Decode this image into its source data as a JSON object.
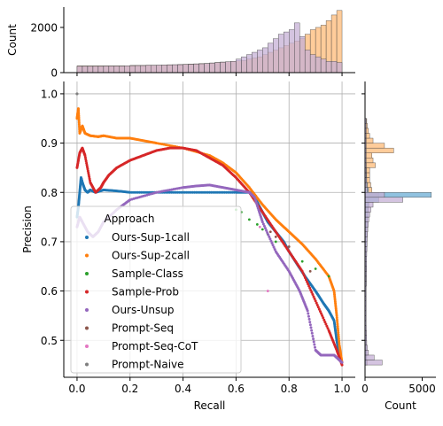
{
  "chart_data": {
    "type": "scatter",
    "main": {
      "xlabel": "Recall",
      "ylabel": "Precision",
      "xlim": [
        -0.05,
        1.05
      ],
      "ylim": [
        0.425,
        1.025
      ],
      "xticks": [
        "0.0",
        "0.2",
        "0.4",
        "0.6",
        "0.8",
        "1.0"
      ],
      "yticks": [
        "0.5",
        "0.6",
        "0.7",
        "0.8",
        "0.9",
        "1.0"
      ],
      "xtick_values": [
        0.0,
        0.2,
        0.4,
        0.6,
        0.8,
        1.0
      ],
      "ytick_values": [
        0.5,
        0.6,
        0.7,
        0.8,
        0.9,
        1.0
      ],
      "grid": true,
      "legend_title": "Approach",
      "legend_position": "lower-left",
      "series": [
        {
          "name": "Ours-Sup-1call",
          "color": "#1f77b4",
          "x": [
            0.0,
            0.005,
            0.01,
            0.015,
            0.02,
            0.03,
            0.04,
            0.05,
            0.07,
            0.1,
            0.15,
            0.2,
            0.3,
            0.4,
            0.5,
            0.6,
            0.66,
            0.68,
            0.7,
            0.72,
            0.75,
            0.78,
            0.8,
            0.83,
            0.86,
            0.9,
            0.93,
            0.95,
            0.97,
            0.98,
            0.99,
            1.0
          ],
          "y": [
            0.75,
            0.77,
            0.8,
            0.83,
            0.82,
            0.805,
            0.8,
            0.805,
            0.8,
            0.805,
            0.803,
            0.8,
            0.8,
            0.8,
            0.8,
            0.8,
            0.8,
            0.78,
            0.76,
            0.74,
            0.72,
            0.7,
            0.68,
            0.655,
            0.63,
            0.6,
            0.575,
            0.56,
            0.54,
            0.5,
            0.47,
            0.455
          ]
        },
        {
          "name": "Ours-Sup-2call",
          "color": "#ff7f0e",
          "x": [
            0.0,
            0.005,
            0.01,
            0.02,
            0.03,
            0.05,
            0.08,
            0.1,
            0.15,
            0.2,
            0.25,
            0.3,
            0.4,
            0.5,
            0.55,
            0.6,
            0.65,
            0.7,
            0.75,
            0.8,
            0.85,
            0.9,
            0.95,
            0.97,
            0.98,
            0.99,
            1.0
          ],
          "y": [
            0.95,
            0.97,
            0.92,
            0.935,
            0.92,
            0.915,
            0.913,
            0.915,
            0.91,
            0.91,
            0.905,
            0.9,
            0.89,
            0.875,
            0.86,
            0.84,
            0.81,
            0.775,
            0.745,
            0.72,
            0.695,
            0.665,
            0.63,
            0.6,
            0.55,
            0.49,
            0.455
          ]
        },
        {
          "name": "Sample-Class",
          "color": "#2ca02c",
          "x": [
            0.6,
            0.62,
            0.65,
            0.68,
            0.7,
            0.72,
            0.75,
            0.8,
            0.85,
            0.9,
            0.95
          ],
          "y": [
            0.765,
            0.76,
            0.745,
            0.735,
            0.725,
            0.715,
            0.7,
            0.68,
            0.66,
            0.645,
            0.63
          ]
        },
        {
          "name": "Sample-Prob",
          "color": "#d62728",
          "x": [
            0.0,
            0.01,
            0.02,
            0.03,
            0.05,
            0.07,
            0.09,
            0.1,
            0.12,
            0.15,
            0.2,
            0.25,
            0.3,
            0.35,
            0.4,
            0.45,
            0.5,
            0.55,
            0.6,
            0.65,
            0.7,
            0.75,
            0.8,
            0.85,
            0.9,
            0.95,
            0.98,
            1.0
          ],
          "y": [
            0.85,
            0.88,
            0.89,
            0.875,
            0.82,
            0.8,
            0.81,
            0.82,
            0.835,
            0.85,
            0.865,
            0.875,
            0.885,
            0.89,
            0.89,
            0.885,
            0.87,
            0.855,
            0.83,
            0.8,
            0.76,
            0.72,
            0.68,
            0.64,
            0.58,
            0.52,
            0.48,
            0.45
          ]
        },
        {
          "name": "Ours-Unsup",
          "color": "#9467bd",
          "x": [
            0.0,
            0.01,
            0.02,
            0.04,
            0.06,
            0.08,
            0.1,
            0.15,
            0.2,
            0.3,
            0.4,
            0.45,
            0.5,
            0.55,
            0.6,
            0.65,
            0.67,
            0.7,
            0.75,
            0.8,
            0.84,
            0.87,
            0.9,
            0.92,
            0.95,
            0.97,
            0.99,
            1.0
          ],
          "y": [
            0.73,
            0.75,
            0.74,
            0.72,
            0.71,
            0.72,
            0.74,
            0.765,
            0.785,
            0.8,
            0.81,
            0.813,
            0.815,
            0.81,
            0.805,
            0.8,
            0.79,
            0.74,
            0.68,
            0.64,
            0.6,
            0.56,
            0.48,
            0.47,
            0.47,
            0.47,
            0.46,
            0.455
          ]
        },
        {
          "name": "Prompt-Seq",
          "color": "#8c564b",
          "x": [
            0.73,
            0.75,
            0.8,
            0.88
          ],
          "y": [
            0.72,
            0.71,
            0.69,
            0.64
          ]
        },
        {
          "name": "Prompt-Seq-CoT",
          "color": "#e377c2",
          "x": [
            0.69,
            0.72
          ],
          "y": [
            0.73,
            0.6
          ]
        },
        {
          "name": "Prompt-Naive",
          "color": "#7f7f7f",
          "x": [
            0.0
          ],
          "y": [
            1.0
          ]
        }
      ]
    },
    "top_histogram": {
      "ylabel": "Count",
      "yticks": [
        "0",
        "2000"
      ],
      "ytick_values": [
        0,
        2000
      ],
      "ylim": [
        0,
        2900
      ],
      "xlim": [
        -0.05,
        1.05
      ],
      "bin_edges_start": 0.0,
      "bin_width": 0.02,
      "series": [
        {
          "name": "Ours-Sup-2call",
          "color": "#ffbb78",
          "values": [
            300,
            300,
            300,
            300,
            300,
            300,
            300,
            300,
            300,
            300,
            320,
            320,
            320,
            330,
            330,
            330,
            340,
            350,
            350,
            360,
            370,
            380,
            390,
            400,
            410,
            430,
            450,
            470,
            480,
            500,
            520,
            540,
            600,
            650,
            700,
            800,
            900,
            1000,
            1100,
            1200,
            1300,
            1400,
            1500,
            1700,
            1900,
            2000,
            2100,
            2300,
            2550,
            2750
          ]
        },
        {
          "name": "Ours-Unsup",
          "color": "#c5b0d5",
          "values": [
            280,
            280,
            280,
            280,
            280,
            290,
            290,
            290,
            290,
            300,
            300,
            310,
            310,
            320,
            320,
            330,
            340,
            340,
            350,
            350,
            360,
            370,
            380,
            390,
            400,
            420,
            440,
            460,
            480,
            500,
            600,
            700,
            800,
            900,
            1000,
            1100,
            1300,
            1500,
            1700,
            1800,
            1900,
            2200,
            1600,
            1000,
            800,
            700,
            600,
            500,
            500,
            450
          ]
        }
      ]
    },
    "right_histogram": {
      "xlabel": "Count",
      "xticks": [
        "0",
        "5000"
      ],
      "xtick_values": [
        0,
        5000
      ],
      "xlim": [
        0,
        6200
      ],
      "ylim": [
        0.425,
        1.025
      ],
      "bin_edges_start": 0.45,
      "bin_width": 0.01,
      "series": [
        {
          "name": "Ours-Sup-2call",
          "color": "#ffbb78",
          "values": [
            200,
            150,
            150,
            120,
            120,
            110,
            110,
            100,
            100,
            100,
            100,
            100,
            100,
            100,
            100,
            100,
            110,
            110,
            110,
            120,
            120,
            130,
            130,
            140,
            150,
            160,
            170,
            180,
            200,
            220,
            250,
            280,
            300,
            350,
            1200,
            600,
            500,
            400,
            400,
            400,
            900,
            700,
            600,
            2500,
            1700,
            700,
            400,
            300,
            200,
            150
          ]
        },
        {
          "name": "Ours-Sup-1call",
          "color": "#6baed6",
          "values": [
            150,
            140,
            130,
            120,
            110,
            110,
            100,
            100,
            100,
            100,
            100,
            100,
            100,
            100,
            100,
            100,
            110,
            110,
            110,
            120,
            120,
            130,
            140,
            150,
            160,
            170,
            180,
            190,
            200,
            220,
            250,
            280,
            320,
            1200,
            5800,
            300,
            200,
            150,
            130,
            120,
            110,
            100,
            100,
            100,
            100,
            100,
            100,
            100,
            100,
            100
          ]
        },
        {
          "name": "Ours-Unsup",
          "color": "#c5b0d5",
          "values": [
            1500,
            800,
            300,
            200,
            150,
            130,
            120,
            110,
            100,
            100,
            100,
            100,
            100,
            100,
            100,
            100,
            110,
            110,
            120,
            120,
            130,
            140,
            150,
            160,
            170,
            190,
            210,
            240,
            280,
            330,
            400,
            500,
            700,
            3300,
            1700,
            200,
            150,
            120,
            110,
            100,
            100,
            100,
            100,
            100,
            100,
            100,
            100,
            100,
            100,
            100
          ]
        }
      ]
    }
  }
}
